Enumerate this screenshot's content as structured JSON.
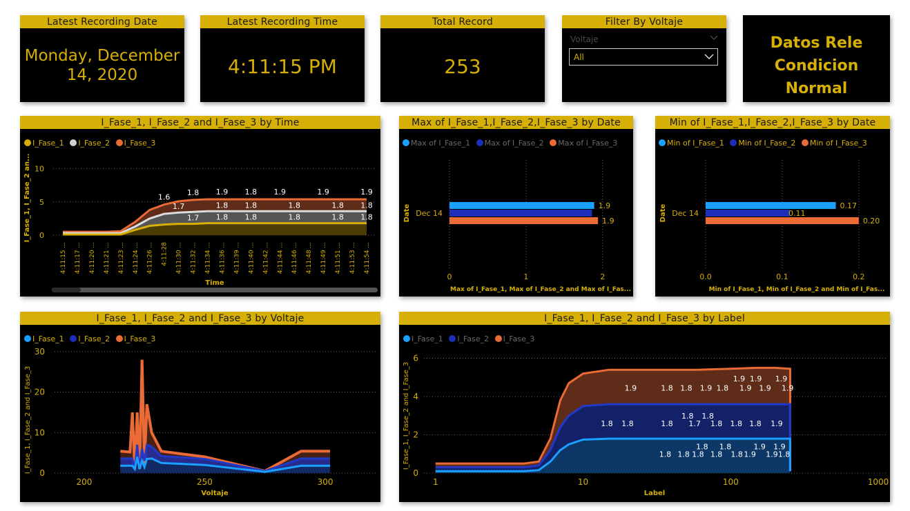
{
  "colors": {
    "gold": "#d6af07",
    "f1": "#1aa0ff",
    "f2": "#1d2fb8",
    "f3": "#ea6b35"
  },
  "cards": {
    "date": {
      "title": "Latest Recording Date",
      "line1": "Monday, December",
      "line2": "14, 2020"
    },
    "time": {
      "title": "Latest Recording Time",
      "value": "4:11:15 PM"
    },
    "total": {
      "title": "Total Record",
      "value": "253"
    }
  },
  "filter": {
    "title": "Filter By Voltaje",
    "field_label": "Voltaje",
    "selected": "All"
  },
  "banner": {
    "line1": "Datos Rele",
    "line2": "Condicion",
    "line3": "Normal"
  },
  "chart_data": [
    {
      "id": "time",
      "type": "area",
      "title": "I_Fase_1, I_Fase_2 and I_Fase_3 by Time",
      "xlabel": "Time",
      "ylabel": "I_Fase_1, I_Fase_2 an...",
      "legend": [
        "I_Fase_1",
        "I_Fase_2",
        "I_Fase_3"
      ],
      "x": [
        "4:11:15 ...",
        "4:11:17 ...",
        "4:11:20 ...",
        "4:11:21 ...",
        "4:11:23 ...",
        "4:11:24 ...",
        "4:11:26 ...",
        "4:11:28",
        "4:11:30 ...",
        "4:11:32 ...",
        "4:11:34 ...",
        "4:11:36 ...",
        "4:11:39 ...",
        "4:11:40 ...",
        "4:11:42 ...",
        "4:11:44 ...",
        "4:11:46 ...",
        "4:11:48 ...",
        "4:11:49 ...",
        "4:11:51 ...",
        "4:11:53 ...",
        "4:11:54 ..."
      ],
      "series": [
        {
          "name": "I_Fase_1",
          "values": [
            0.1,
            0.1,
            0.1,
            0.1,
            0.1,
            0.8,
            1.4,
            1.6,
            1.7,
            1.7,
            1.8,
            1.8,
            1.8,
            1.8,
            1.8,
            1.8,
            1.8,
            1.8,
            1.8,
            1.8,
            1.8,
            1.8
          ]
        },
        {
          "name": "I_Fase_2",
          "values": [
            0.3,
            0.3,
            0.3,
            0.3,
            0.3,
            1.3,
            2.5,
            3.2,
            3.4,
            3.5,
            3.6,
            3.6,
            3.6,
            3.6,
            3.6,
            3.6,
            3.6,
            3.6,
            3.6,
            3.6,
            3.6,
            3.6
          ]
        },
        {
          "name": "I_Fase_3",
          "values": [
            0.5,
            0.5,
            0.5,
            0.5,
            0.6,
            2.0,
            3.8,
            4.6,
            5.1,
            5.3,
            5.4,
            5.4,
            5.4,
            5.4,
            5.4,
            5.4,
            5.4,
            5.4,
            5.4,
            5.4,
            5.4,
            5.4
          ]
        }
      ],
      "ylim": [
        0,
        11
      ],
      "yticks": [
        "0",
        "5",
        "10"
      ],
      "labels": {
        "f1": [
          [
            9,
            "1.7"
          ],
          [
            11,
            "1.8"
          ],
          [
            13,
            "1.8"
          ],
          [
            16,
            "1.8"
          ],
          [
            19,
            "1.8"
          ],
          [
            21,
            "1.8"
          ]
        ],
        "f2": [
          [
            8,
            "1.7"
          ],
          [
            11,
            "1.8"
          ],
          [
            13,
            "1.8"
          ],
          [
            16,
            "1.8"
          ],
          [
            19,
            "1.8"
          ],
          [
            21,
            "1.8"
          ]
        ],
        "f3": [
          [
            7,
            "1.6"
          ],
          [
            9,
            "1.8"
          ],
          [
            11,
            "1.9"
          ],
          [
            13,
            "1.8"
          ],
          [
            15,
            "1.9"
          ],
          [
            18,
            "1.9"
          ],
          [
            21,
            "1.9"
          ]
        ]
      }
    },
    {
      "id": "max",
      "type": "bar",
      "title": "Max of I_Fase_1,I_Fase_2,I_Fase_3 by Date",
      "xlabel": "Max of I_Fase_1, Max of I_Fase_2 and Max of I_Fas...",
      "ylabel": "Date",
      "legend": [
        "Max of I_Fase_1",
        "Max of I_Fase_2",
        "Max of I_Fase_3"
      ],
      "categories": [
        "Dec 14"
      ],
      "series": [
        {
          "name": "Max of I_Fase_1",
          "values": [
            1.89
          ]
        },
        {
          "name": "Max of I_Fase_2",
          "values": [
            1.86
          ]
        },
        {
          "name": "Max of I_Fase_3",
          "values": [
            1.94
          ]
        }
      ],
      "value_labels": [
        "1.9",
        "",
        "1.9"
      ],
      "xlim": [
        0,
        2.2
      ],
      "xticks": [
        0,
        1,
        2
      ],
      "xtick_labels": [
        "0",
        "1",
        "2"
      ]
    },
    {
      "id": "min",
      "type": "bar",
      "title": "Min of I_Fase_1,I_Fase_2,I_Fase_3 by Date",
      "xlabel": "Min of I_Fase_1, Min of I_Fase_2 and Min of I_Fas...",
      "ylabel": "Date",
      "legend": [
        "Min of I_Fase_1",
        "Min of I_Fase_2",
        "Min of I_Fase_3"
      ],
      "categories": [
        "Dec 14"
      ],
      "series": [
        {
          "name": "Min of I_Fase_1",
          "values": [
            0.17
          ]
        },
        {
          "name": "Min of I_Fase_2",
          "values": [
            0.11
          ]
        },
        {
          "name": "Min of I_Fase_3",
          "values": [
            0.2
          ]
        }
      ],
      "value_labels": [
        "0.17",
        "0.11",
        "0.20"
      ],
      "xlim": [
        0,
        0.22
      ],
      "xticks": [
        0,
        0.1,
        0.2
      ],
      "xtick_labels": [
        "0.0",
        "0.1",
        "0.2"
      ]
    },
    {
      "id": "voltaje",
      "type": "line",
      "title": "I_Fase_1, I_Fase_2 and I_Fase_3 by Voltaje",
      "xlabel": "Voltaje",
      "ylabel": "I_Fase_1, I_Fase_2 and I_Fase_3",
      "legend": [
        "I_Fase_1",
        "I_Fase_2",
        "I_Fase_3"
      ],
      "xlim": [
        190,
        308
      ],
      "ylim": [
        0,
        31
      ],
      "xticks": [
        200,
        250,
        300
      ],
      "yticks": [
        0,
        10,
        20,
        30
      ],
      "series": [
        {
          "name": "I_Fase_1",
          "x": [
            215,
            220,
            221,
            222,
            223,
            224,
            225,
            226,
            228,
            232,
            250,
            275,
            290,
            302
          ],
          "y": [
            1.8,
            1.8,
            1.0,
            4,
            1.0,
            3,
            1.5,
            3.5,
            3.6,
            2.5,
            2.0,
            0.3,
            1.8,
            1.8
          ]
        },
        {
          "name": "I_Fase_2",
          "x": [
            215,
            220,
            221,
            222,
            223,
            224,
            225,
            226,
            228,
            232,
            250,
            275,
            290,
            302
          ],
          "y": [
            3.6,
            3.6,
            1.0,
            7,
            1.0,
            6,
            3,
            7,
            6.5,
            4.2,
            3.5,
            0.5,
            3.6,
            3.6
          ]
        },
        {
          "name": "I_Fase_3",
          "x": [
            215,
            219,
            220,
            221,
            222,
            223,
            224,
            225,
            226,
            228,
            232,
            250,
            275,
            290,
            302
          ],
          "y": [
            5.4,
            5.2,
            15,
            1.0,
            15,
            1.0,
            28,
            2,
            17,
            10,
            5.4,
            4.0,
            0.5,
            5.4,
            5.4
          ]
        }
      ]
    },
    {
      "id": "label",
      "type": "area",
      "title": "I_Fase_1, I_Fase_2 and I_Fase_3 by Label",
      "xlabel": "Label",
      "ylabel": "I_Fase_1, I_Fase_2 and I_Fase_3",
      "legend": [
        "I_Fase_1",
        "I_Fase_2",
        "I_Fase_3"
      ],
      "xscale": "log",
      "xlim": [
        0.97,
        1000
      ],
      "ylim": [
        0,
        6.2
      ],
      "xticks": [
        1,
        10,
        100,
        1000
      ],
      "xtick_labels": [
        "1",
        "10",
        "100",
        "1000"
      ],
      "yticks": [
        0,
        2,
        4,
        6
      ],
      "series": [
        {
          "name": "I_Fase_1",
          "x": [
            1,
            2,
            4,
            5,
            6,
            7,
            8,
            10,
            15,
            30,
            60,
            100,
            150,
            200,
            253
          ],
          "y": [
            0.1,
            0.1,
            0.1,
            0.15,
            0.6,
            1.2,
            1.5,
            1.75,
            1.8,
            1.8,
            1.8,
            1.8,
            1.8,
            1.8,
            1.8
          ]
        },
        {
          "name": "I_Fase_2",
          "x": [
            1,
            2,
            4,
            5,
            6,
            7,
            8,
            10,
            15,
            30,
            60,
            100,
            150,
            200,
            253
          ],
          "y": [
            0.3,
            0.3,
            0.3,
            0.4,
            1.2,
            2.4,
            3.0,
            3.5,
            3.6,
            3.6,
            3.6,
            3.6,
            3.6,
            3.6,
            3.6
          ]
        },
        {
          "name": "I_Fase_3",
          "x": [
            1,
            2,
            4,
            5,
            6,
            7,
            8,
            10,
            15,
            30,
            60,
            100,
            150,
            200,
            253
          ],
          "y": [
            0.5,
            0.5,
            0.5,
            0.6,
            1.8,
            3.8,
            4.7,
            5.2,
            5.4,
            5.4,
            5.4,
            5.45,
            5.5,
            5.5,
            5.45
          ]
        }
      ],
      "labels": {
        "f1": [
          [
            36,
            "1.8"
          ],
          [
            48,
            "1.8"
          ],
          [
            60,
            "1.8"
          ],
          [
            80,
            "1.8"
          ],
          [
            110,
            "1.8"
          ],
          [
            135,
            "1.9"
          ],
          [
            190,
            "1.9"
          ],
          [
            230,
            "1.8"
          ]
        ],
        "f1b": [
          [
            64,
            "1.8"
          ],
          [
            92,
            "1.8"
          ],
          [
            157,
            "1.9"
          ],
          [
            214,
            "1.9"
          ]
        ],
        "f2": [
          [
            14.5,
            "1.8"
          ],
          [
            20,
            "1.8"
          ],
          [
            37,
            "1.8"
          ],
          [
            57,
            "1.7"
          ],
          [
            80,
            "1.8"
          ],
          [
            109,
            "1.8"
          ],
          [
            147,
            "1.8"
          ],
          [
            205,
            "1.9"
          ]
        ],
        "f2b": [
          [
            51,
            "1.8"
          ],
          [
            70,
            "1.8"
          ]
        ],
        "f3": [
          [
            21,
            "1.9"
          ],
          [
            37,
            "1.8"
          ],
          [
            50,
            "1.8"
          ],
          [
            68,
            "1.9"
          ],
          [
            88,
            "1.8"
          ],
          [
            126,
            "1.9"
          ],
          [
            171,
            "1.9"
          ],
          [
            243,
            "1.9"
          ]
        ],
        "f3b": [
          [
            114,
            "1.9"
          ],
          [
            148,
            "1.9"
          ],
          [
            220,
            "1.9"
          ]
        ]
      }
    }
  ]
}
